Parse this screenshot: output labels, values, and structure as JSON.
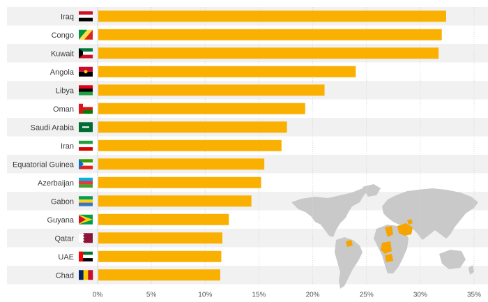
{
  "chart_data": {
    "type": "bar",
    "orientation": "horizontal",
    "title": "",
    "xlabel": "",
    "ylabel": "",
    "xlim": [
      0,
      35
    ],
    "xticks": [
      0,
      5,
      10,
      15,
      20,
      25,
      30,
      35
    ],
    "tick_suffix": "%",
    "grid": true,
    "categories": [
      "Iraq",
      "Congo",
      "Kuwait",
      "Angola",
      "Libya",
      "Oman",
      "Saudi Arabia",
      "Iran",
      "Equatorial Guinea",
      "Azerbaijan",
      "Gabon",
      "Guyana",
      "Qatar",
      "UAE",
      "Chad"
    ],
    "values": [
      32.4,
      32.0,
      31.7,
      24.0,
      21.1,
      19.3,
      17.6,
      17.1,
      15.5,
      15.2,
      14.3,
      12.2,
      11.6,
      11.5,
      11.4
    ],
    "colors": {
      "bar": "#FAB000",
      "row_stripe": "#F1F1F1",
      "grid": "#D7D7D7",
      "map_land": "#C9C9C9",
      "map_highlight": "#F5A400"
    }
  }
}
